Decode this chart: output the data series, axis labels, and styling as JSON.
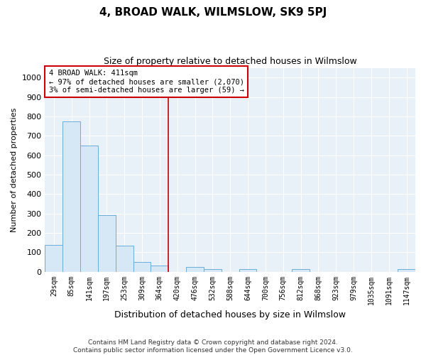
{
  "title": "4, BROAD WALK, WILMSLOW, SK9 5PJ",
  "subtitle": "Size of property relative to detached houses in Wilmslow",
  "xlabel": "Distribution of detached houses by size in Wilmslow",
  "ylabel": "Number of detached properties",
  "categories": [
    "29sqm",
    "85sqm",
    "141sqm",
    "197sqm",
    "253sqm",
    "309sqm",
    "364sqm",
    "420sqm",
    "476sqm",
    "532sqm",
    "588sqm",
    "644sqm",
    "700sqm",
    "756sqm",
    "812sqm",
    "868sqm",
    "923sqm",
    "979sqm",
    "1035sqm",
    "1091sqm",
    "1147sqm"
  ],
  "values": [
    137,
    775,
    650,
    290,
    135,
    50,
    33,
    0,
    25,
    15,
    0,
    15,
    0,
    0,
    15,
    0,
    0,
    0,
    0,
    0,
    15
  ],
  "bar_color": "#d6e8f5",
  "bar_edge_color": "#6aaed6",
  "vline_color": "#cc0000",
  "vline_x": 6.5,
  "annotation_text": "4 BROAD WALK: 411sqm\n← 97% of detached houses are smaller (2,070)\n3% of semi-detached houses are larger (59) →",
  "annotation_box_facecolor": "#ffffff",
  "annotation_box_edgecolor": "#cc0000",
  "ylim": [
    0,
    1050
  ],
  "yticks": [
    0,
    100,
    200,
    300,
    400,
    500,
    600,
    700,
    800,
    900,
    1000
  ],
  "footer_line1": "Contains HM Land Registry data © Crown copyright and database right 2024.",
  "footer_line2": "Contains public sector information licensed under the Open Government Licence v3.0.",
  "bg_color": "#ffffff",
  "plot_bg_color": "#e8f0f8",
  "grid_color": "#ffffff",
  "title_fontsize": 11,
  "subtitle_fontsize": 9,
  "xlabel_fontsize": 9,
  "ylabel_fontsize": 8,
  "tick_fontsize": 7,
  "footer_fontsize": 6.5,
  "annotation_fontsize": 7.5
}
